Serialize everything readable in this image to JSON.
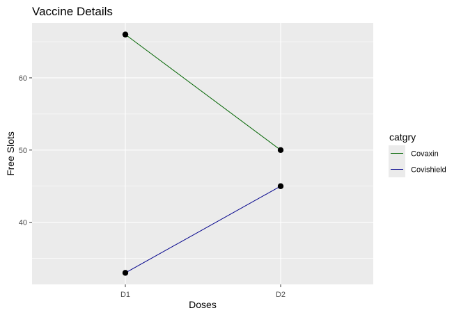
{
  "chart_data": {
    "type": "line",
    "title": "Vaccine Details",
    "xlabel": "Doses",
    "ylabel": "Free Slots",
    "categories": [
      "D1",
      "D2"
    ],
    "ylim": [
      31.4,
      67.6
    ],
    "yticks": [
      40,
      50,
      60
    ],
    "grid": true,
    "legend": {
      "title": "catgry",
      "placement": "right"
    },
    "series": [
      {
        "name": "Covaxin",
        "values": [
          66,
          50
        ],
        "color": "#006400"
      },
      {
        "name": "Covishield",
        "values": [
          33,
          45
        ],
        "color": "#00008b"
      }
    ],
    "point_color": "#000000",
    "panel_background": "#ebebeb",
    "gridline_color": "#ffffff"
  }
}
